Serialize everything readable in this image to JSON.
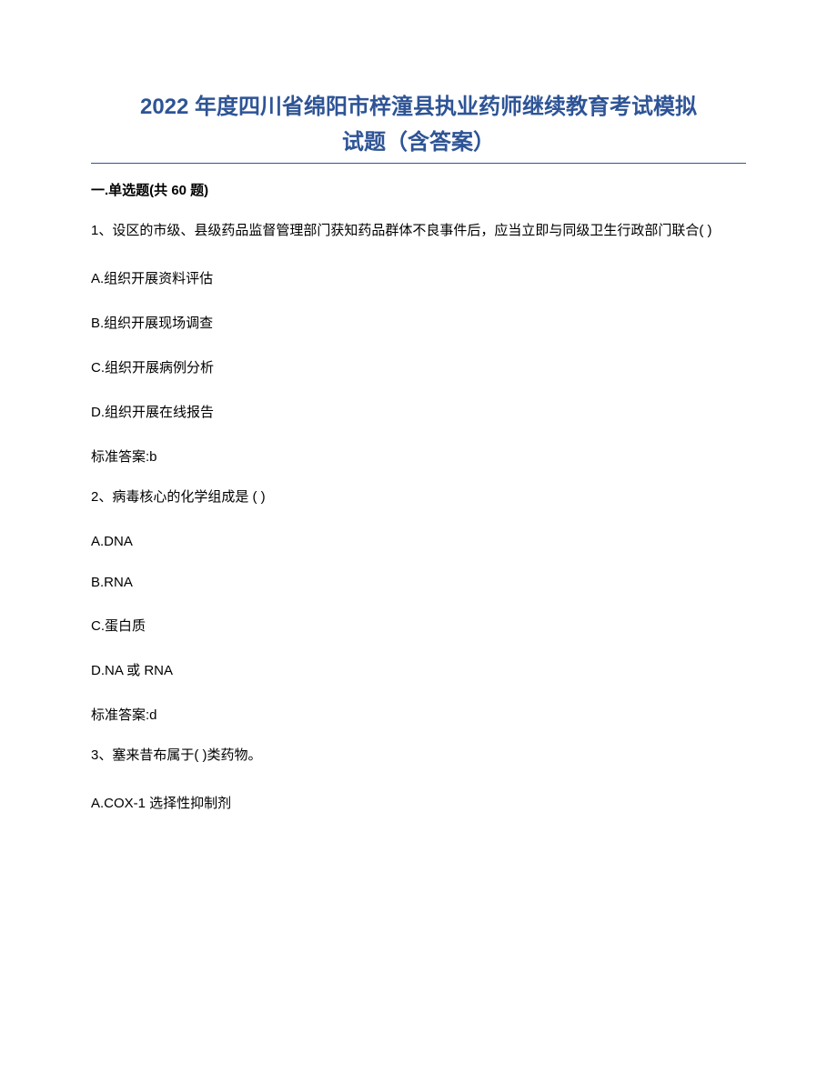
{
  "title": {
    "line1": "2022 年度四川省绵阳市梓潼县执业药师继续教育考试模拟",
    "line2": "试题（含答案）",
    "color": "#2e5496",
    "fontsize": 24
  },
  "divider_color": "#2e5496",
  "section": {
    "header": "一.单选题(共 60 题)"
  },
  "questions": [
    {
      "number": "1、",
      "text": "设区的市级、县级药品监督管理部门获知药品群体不良事件后，应当立即与同级卫生行政部门联合( )",
      "options": [
        "A.组织开展资料评估",
        "B.组织开展现场调查",
        "C.组织开展病例分析",
        "D.组织开展在线报告"
      ],
      "answer": "标准答案:b"
    },
    {
      "number": "2、",
      "text": "病毒核心的化学组成是 ( )",
      "options": [
        "A.DNA",
        "B.RNA",
        "C.蛋白质",
        "D.NA 或 RNA"
      ],
      "answer": "标准答案:d"
    },
    {
      "number": "3、",
      "text": "塞来昔布属于( )类药物。",
      "options": [
        "A.COX-1 选择性抑制剂"
      ],
      "answer": null
    }
  ],
  "text_color": "#000000",
  "body_fontsize": 15,
  "background_color": "#ffffff"
}
